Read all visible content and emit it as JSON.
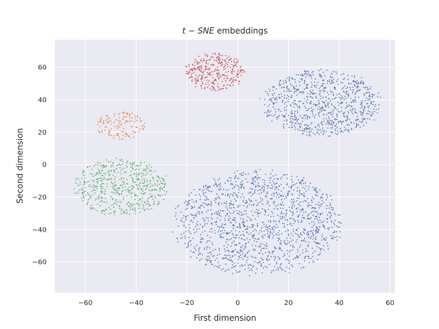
{
  "chart_data": {
    "type": "scatter",
    "title": "t−SNE embeddings",
    "title_parts": [
      {
        "text": "t",
        "italic": true
      },
      {
        "text": " − ",
        "italic": false
      },
      {
        "text": "SNE",
        "italic": true
      },
      {
        "text": " embeddings",
        "italic": false
      }
    ],
    "xlabel": "First dimension",
    "ylabel": "Second dimension",
    "xlim": [
      -72,
      62
    ],
    "ylim": [
      -79,
      77
    ],
    "xticks": [
      -60,
      -40,
      -20,
      0,
      20,
      40,
      60
    ],
    "yticks": [
      -60,
      -40,
      -20,
      0,
      20,
      40,
      60
    ],
    "xtick_labels": [
      "−60",
      "−40",
      "−20",
      "0",
      "20",
      "40",
      "60"
    ],
    "ytick_labels": [
      "−60",
      "−40",
      "−20",
      "0",
      "20",
      "40",
      "60"
    ],
    "grid": true,
    "background": "#eaeaf2",
    "series": [
      {
        "color": "#4c72b0",
        "clusters": [
          {
            "cx": 33,
            "cy": 38,
            "rx": 24,
            "ry": 21,
            "n": 850
          },
          {
            "cx": 8,
            "cy": -36,
            "rx": 34,
            "ry": 33,
            "n": 1500
          }
        ]
      },
      {
        "color": "#dd8452",
        "clusters": [
          {
            "cx": -46,
            "cy": 24,
            "rx": 10,
            "ry": 9,
            "n": 140
          }
        ]
      },
      {
        "color": "#55a868",
        "clusters": [
          {
            "cx": -46,
            "cy": -14,
            "rx": 19,
            "ry": 18,
            "n": 560
          }
        ]
      },
      {
        "color": "#c44e52",
        "clusters": [
          {
            "cx": -9,
            "cy": 57,
            "rx": 12,
            "ry": 12,
            "n": 330
          }
        ]
      }
    ]
  }
}
